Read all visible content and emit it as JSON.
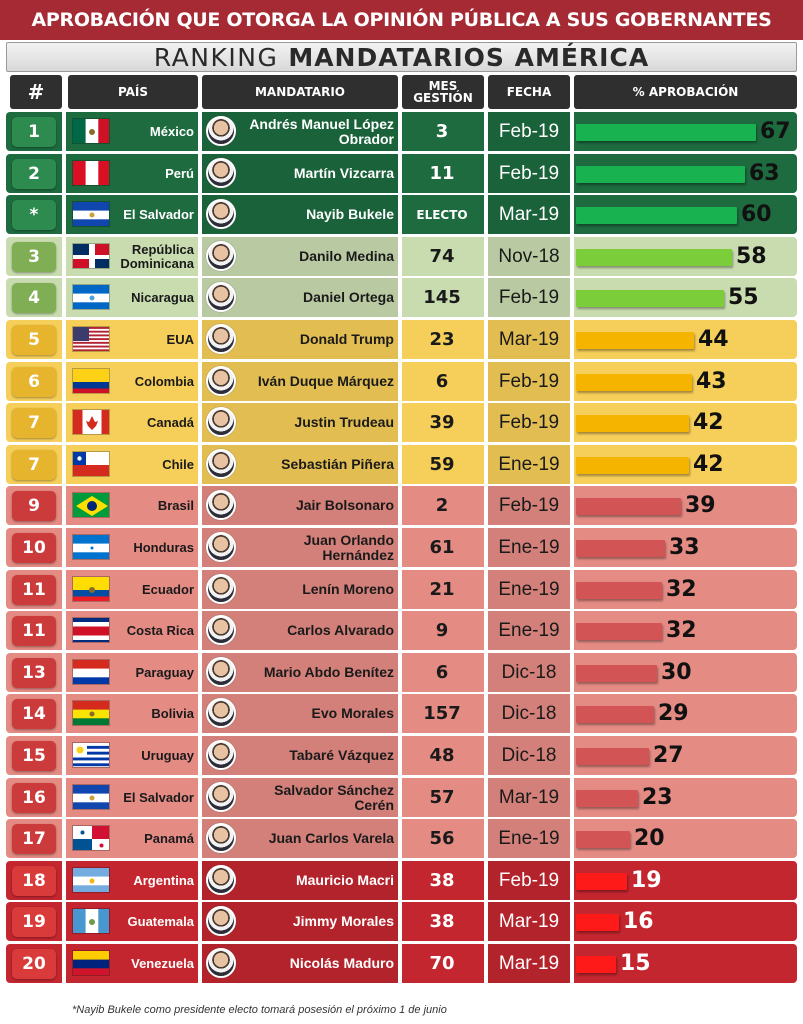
{
  "banner": "APROBACIÓN QUE OTORGA LA OPINIÓN PÚBLICA A SUS GOBERNANTES",
  "subtitle": {
    "light": "RANKING",
    "bold": "MANDATARIOS AMÉRICA"
  },
  "headers": {
    "rank": "#",
    "country": "PAÍS",
    "leader": "MANDATARIO",
    "months_line1": "MES",
    "months_line2": "GESTIÓN",
    "date": "FECHA",
    "approval": "% APROBACIÓN"
  },
  "tiers": {
    "green": {
      "row": "#1d6b3f",
      "badge": "#2e8b4f",
      "bar": "#18b250",
      "text": "#ffffff",
      "pct": "#111111"
    },
    "lightgreen": {
      "row": "#c9dcb0",
      "badge": "#7fae55",
      "bar": "#7ccd3a",
      "text": "#1a1a1a",
      "pct": "#111111"
    },
    "yellow": {
      "row": "#f6cf5a",
      "badge": "#e7b52d",
      "bar": "#f5b400",
      "text": "#1a1a1a",
      "pct": "#111111"
    },
    "red": {
      "row": "#e48b84",
      "badge": "#cc3b3b",
      "bar": "#d25454",
      "text": "#1a1a1a",
      "pct": "#111111"
    },
    "darkred": {
      "row": "#c3262f",
      "badge": "#d93a3a",
      "bar": "#ff1a1a",
      "text": "#ffffff",
      "pct": "#ffffff"
    }
  },
  "chart_data": {
    "type": "bar",
    "title": "RANKING MANDATARIOS AMÉRICA",
    "xlim": [
      0,
      67
    ],
    "rows": [
      {
        "rank": "1",
        "country": "México",
        "leader": "Andrés Manuel López Obrador",
        "months": "3",
        "date": "Feb-19",
        "approval": 67,
        "tier": "green",
        "flag": "mx"
      },
      {
        "rank": "2",
        "country": "Perú",
        "leader": "Martín Vizcarra",
        "months": "11",
        "date": "Feb-19",
        "approval": 63,
        "tier": "green",
        "flag": "pe"
      },
      {
        "rank": "*",
        "country": "El Salvador",
        "leader": "Nayib Bukele",
        "months": "ELECTO",
        "date": "Mar-19",
        "approval": 60,
        "tier": "green",
        "flag": "sv"
      },
      {
        "rank": "3",
        "country": "República Dominicana",
        "leader": "Danilo Medina",
        "months": "74",
        "date": "Nov-18",
        "approval": 58,
        "tier": "lightgreen",
        "flag": "do"
      },
      {
        "rank": "4",
        "country": "Nicaragua",
        "leader": "Daniel Ortega",
        "months": "145",
        "date": "Feb-19",
        "approval": 55,
        "tier": "lightgreen",
        "flag": "ni"
      },
      {
        "rank": "5",
        "country": "EUA",
        "leader": "Donald Trump",
        "months": "23",
        "date": "Mar-19",
        "approval": 44,
        "tier": "yellow",
        "flag": "us"
      },
      {
        "rank": "6",
        "country": "Colombia",
        "leader": "Iván Duque Márquez",
        "months": "6",
        "date": "Feb-19",
        "approval": 43,
        "tier": "yellow",
        "flag": "co"
      },
      {
        "rank": "7",
        "country": "Canadá",
        "leader": "Justin Trudeau",
        "months": "39",
        "date": "Feb-19",
        "approval": 42,
        "tier": "yellow",
        "flag": "ca"
      },
      {
        "rank": "7",
        "country": "Chile",
        "leader": "Sebastián Piñera",
        "months": "59",
        "date": "Ene-19",
        "approval": 42,
        "tier": "yellow",
        "flag": "cl"
      },
      {
        "rank": "9",
        "country": "Brasil",
        "leader": "Jair Bolsonaro",
        "months": "2",
        "date": "Feb-19",
        "approval": 39,
        "tier": "red",
        "flag": "br"
      },
      {
        "rank": "10",
        "country": "Honduras",
        "leader": "Juan Orlando Hernández",
        "months": "61",
        "date": "Ene-19",
        "approval": 33,
        "tier": "red",
        "flag": "hn"
      },
      {
        "rank": "11",
        "country": "Ecuador",
        "leader": "Lenín Moreno",
        "months": "21",
        "date": "Ene-19",
        "approval": 32,
        "tier": "red",
        "flag": "ec"
      },
      {
        "rank": "11",
        "country": "Costa Rica",
        "leader": "Carlos Alvarado",
        "months": "9",
        "date": "Ene-19",
        "approval": 32,
        "tier": "red",
        "flag": "cr"
      },
      {
        "rank": "13",
        "country": "Paraguay",
        "leader": "Mario Abdo Benítez",
        "months": "6",
        "date": "Dic-18",
        "approval": 30,
        "tier": "red",
        "flag": "py"
      },
      {
        "rank": "14",
        "country": "Bolivia",
        "leader": "Evo Morales",
        "months": "157",
        "date": "Dic-18",
        "approval": 29,
        "tier": "red",
        "flag": "bo"
      },
      {
        "rank": "15",
        "country": "Uruguay",
        "leader": "Tabaré Vázquez",
        "months": "48",
        "date": "Dic-18",
        "approval": 27,
        "tier": "red",
        "flag": "uy"
      },
      {
        "rank": "16",
        "country": "El Salvador",
        "leader": "Salvador Sánchez Cerén",
        "months": "57",
        "date": "Mar-19",
        "approval": 23,
        "tier": "red",
        "flag": "sv"
      },
      {
        "rank": "17",
        "country": "Panamá",
        "leader": "Juan Carlos Varela",
        "months": "56",
        "date": "Ene-19",
        "approval": 20,
        "tier": "red",
        "flag": "pa"
      },
      {
        "rank": "18",
        "country": "Argentina",
        "leader": "Mauricio Macri",
        "months": "38",
        "date": "Feb-19",
        "approval": 19,
        "tier": "darkred",
        "flag": "ar"
      },
      {
        "rank": "19",
        "country": "Guatemala",
        "leader": "Jimmy Morales",
        "months": "38",
        "date": "Mar-19",
        "approval": 16,
        "tier": "darkred",
        "flag": "gt"
      },
      {
        "rank": "20",
        "country": "Venezuela",
        "leader": "Nicolás Maduro",
        "months": "70",
        "date": "Mar-19",
        "approval": 15,
        "tier": "darkred",
        "flag": "ve"
      }
    ]
  },
  "footnote": "*Nayib Bukele como presidente electo tomará posesión el próximo 1 de junio"
}
